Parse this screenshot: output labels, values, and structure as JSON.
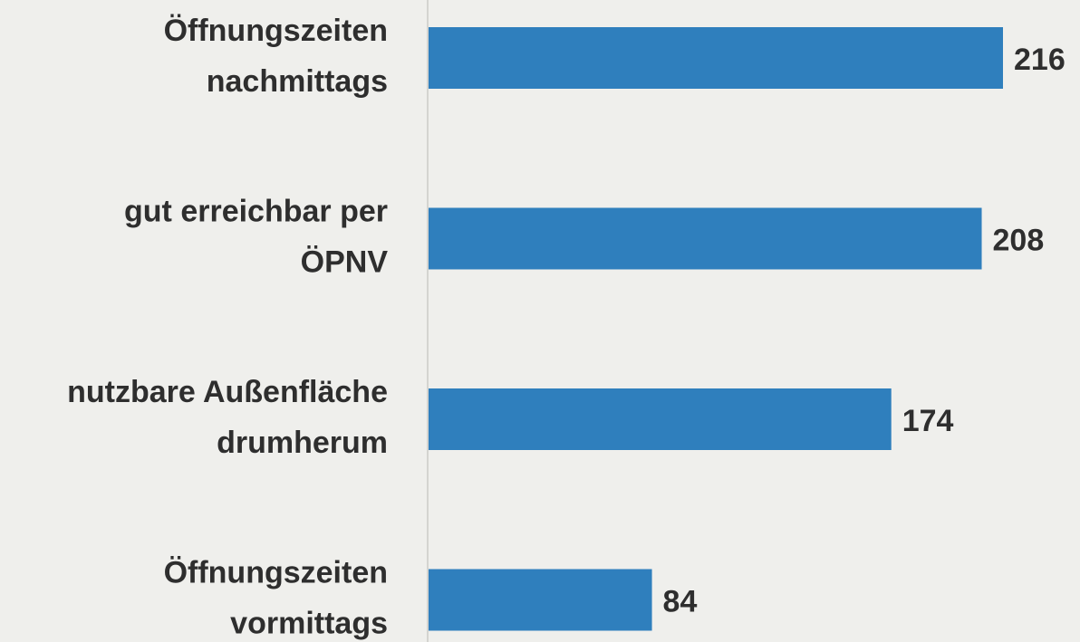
{
  "chart_data": {
    "type": "barh",
    "categories": [
      [
        "Öffnungszeiten",
        "nachmittags"
      ],
      [
        "gut erreichbar per",
        "ÖPNV"
      ],
      [
        "nutzbare Außenfläche",
        "drumherum"
      ],
      [
        "Öffnungszeiten",
        "vormittags"
      ]
    ],
    "values": [
      216,
      208,
      174,
      84
    ],
    "color": "#2f7fbd"
  }
}
